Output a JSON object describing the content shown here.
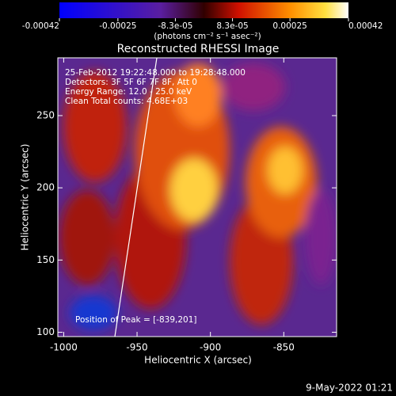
{
  "chart_data": {
    "type": "heatmap",
    "title": "Reconstructed RHESSI Image",
    "x_label": "Heliocentric X (arcsec)",
    "y_label": "Heliocentric Y (arcsec)",
    "xlim": [
      -1004,
      -814
    ],
    "ylim": [
      97,
      290
    ],
    "xticks": [
      -1000,
      -950,
      -900,
      -850
    ],
    "yticks": [
      100,
      150,
      200,
      250
    ],
    "colorbar": {
      "clim": [
        -0.00042,
        0.00042
      ],
      "ticks": [
        -0.00042,
        -0.00025,
        {
          "value": -8.3e-05,
          "label": "-8.3e-05"
        },
        {
          "value": 8.3e-05,
          "label": "8.3e-05"
        },
        0.00025,
        0.00042
      ],
      "unit": "(photons cm⁻² s⁻¹ asec⁻²)"
    },
    "annotations": [
      "25-Feb-2012 19:22:48.000 to 19:28:48.000",
      "Detectors: 3F 5F 6F 7F 8F, Att 0",
      "Energy Range: 12.0 - 25.0 keV",
      "Clean    Total counts: 4.68E+03"
    ],
    "peak_label": "Position of Peak = [-839,201]",
    "timestamp": "9-May-2022 01:21"
  }
}
